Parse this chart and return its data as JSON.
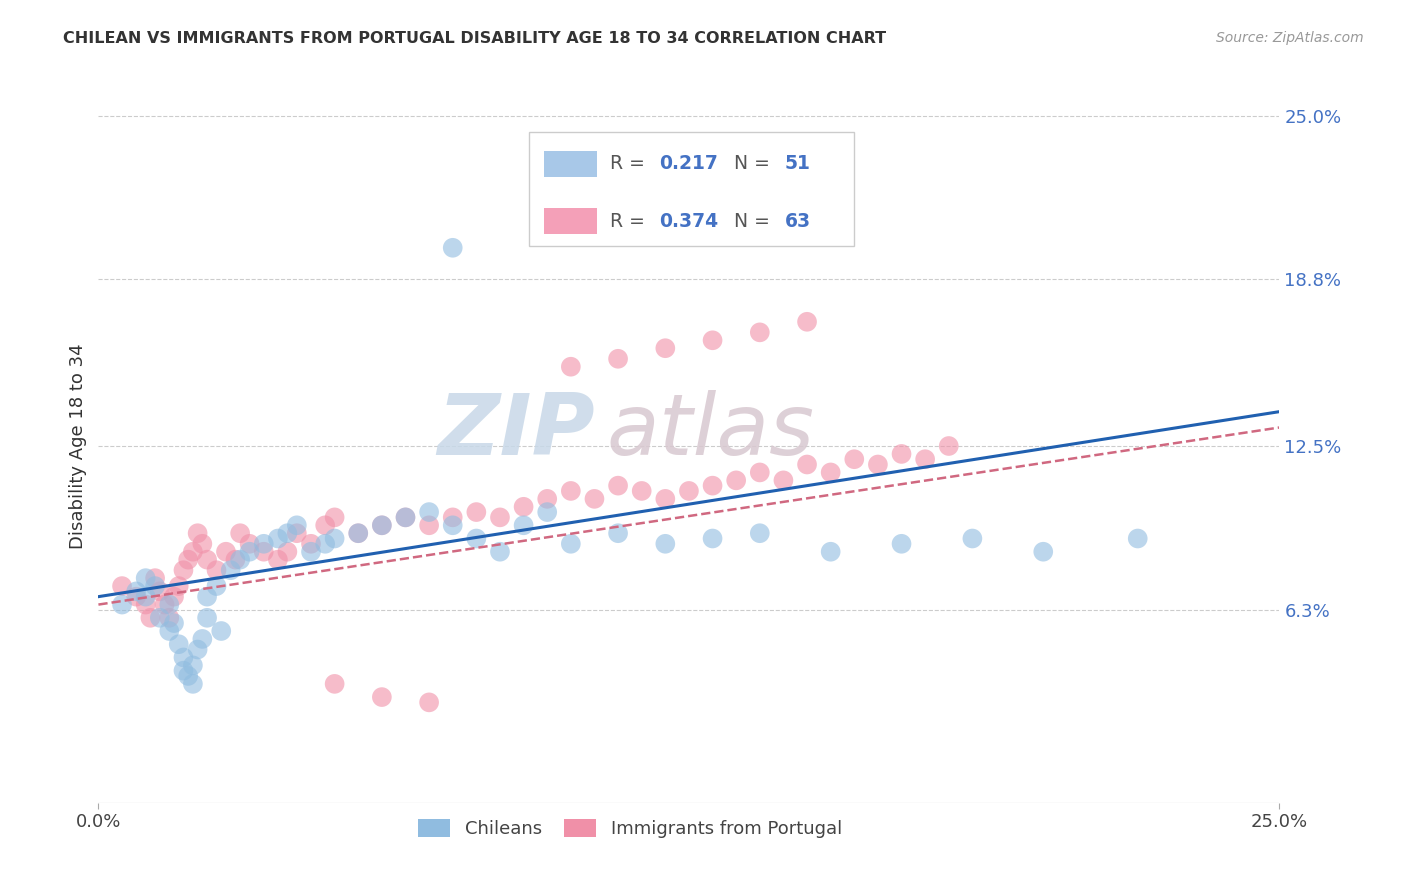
{
  "title": "CHILEAN VS IMMIGRANTS FROM PORTUGAL DISABILITY AGE 18 TO 34 CORRELATION CHART",
  "source": "Source: ZipAtlas.com",
  "ylabel": "Disability Age 18 to 34",
  "xlim": [
    0.0,
    0.25
  ],
  "ylim": [
    -0.01,
    0.26
  ],
  "ytick_labels": [
    "25.0%",
    "18.8%",
    "12.5%",
    "6.3%"
  ],
  "ytick_values": [
    0.25,
    0.188,
    0.125,
    0.063
  ],
  "legend_entry1": {
    "R": "0.217",
    "N": "51",
    "color": "#a8c8e8"
  },
  "legend_entry2": {
    "R": "0.374",
    "N": "63",
    "color": "#f4a0b8"
  },
  "blue_color": "#90bce0",
  "pink_color": "#f090a8",
  "blue_line_color": "#2060b0",
  "pink_line_color": "#d06880",
  "watermark_zip": "ZIP",
  "watermark_atlas": "atlas",
  "figsize": [
    14.06,
    8.92
  ],
  "dpi": 100,
  "blue_x": [
    0.005,
    0.008,
    0.01,
    0.01,
    0.012,
    0.013,
    0.015,
    0.015,
    0.016,
    0.017,
    0.018,
    0.018,
    0.019,
    0.02,
    0.02,
    0.021,
    0.022,
    0.023,
    0.023,
    0.025,
    0.026,
    0.028,
    0.03,
    0.032,
    0.035,
    0.038,
    0.04,
    0.042,
    0.045,
    0.048,
    0.05,
    0.055,
    0.06,
    0.065,
    0.07,
    0.075,
    0.08,
    0.085,
    0.09,
    0.095,
    0.1,
    0.11,
    0.12,
    0.13,
    0.14,
    0.155,
    0.17,
    0.185,
    0.2,
    0.22,
    0.075
  ],
  "blue_y": [
    0.065,
    0.07,
    0.068,
    0.075,
    0.072,
    0.06,
    0.065,
    0.055,
    0.058,
    0.05,
    0.045,
    0.04,
    0.038,
    0.035,
    0.042,
    0.048,
    0.052,
    0.06,
    0.068,
    0.072,
    0.055,
    0.078,
    0.082,
    0.085,
    0.088,
    0.09,
    0.092,
    0.095,
    0.085,
    0.088,
    0.09,
    0.092,
    0.095,
    0.098,
    0.1,
    0.095,
    0.09,
    0.085,
    0.095,
    0.1,
    0.088,
    0.092,
    0.088,
    0.09,
    0.092,
    0.085,
    0.088,
    0.09,
    0.085,
    0.09,
    0.2
  ],
  "pink_x": [
    0.005,
    0.008,
    0.01,
    0.011,
    0.012,
    0.013,
    0.014,
    0.015,
    0.016,
    0.017,
    0.018,
    0.019,
    0.02,
    0.021,
    0.022,
    0.023,
    0.025,
    0.027,
    0.029,
    0.03,
    0.032,
    0.035,
    0.038,
    0.04,
    0.042,
    0.045,
    0.048,
    0.05,
    0.055,
    0.06,
    0.065,
    0.07,
    0.075,
    0.08,
    0.085,
    0.09,
    0.095,
    0.1,
    0.105,
    0.11,
    0.115,
    0.12,
    0.125,
    0.13,
    0.135,
    0.14,
    0.145,
    0.15,
    0.155,
    0.16,
    0.165,
    0.17,
    0.175,
    0.18,
    0.1,
    0.11,
    0.12,
    0.13,
    0.14,
    0.15,
    0.05,
    0.06,
    0.07
  ],
  "pink_y": [
    0.072,
    0.068,
    0.065,
    0.06,
    0.075,
    0.07,
    0.065,
    0.06,
    0.068,
    0.072,
    0.078,
    0.082,
    0.085,
    0.092,
    0.088,
    0.082,
    0.078,
    0.085,
    0.082,
    0.092,
    0.088,
    0.085,
    0.082,
    0.085,
    0.092,
    0.088,
    0.095,
    0.098,
    0.092,
    0.095,
    0.098,
    0.095,
    0.098,
    0.1,
    0.098,
    0.102,
    0.105,
    0.108,
    0.105,
    0.11,
    0.108,
    0.105,
    0.108,
    0.11,
    0.112,
    0.115,
    0.112,
    0.118,
    0.115,
    0.12,
    0.118,
    0.122,
    0.12,
    0.125,
    0.155,
    0.158,
    0.162,
    0.165,
    0.168,
    0.172,
    0.035,
    0.03,
    0.028
  ],
  "blue_line_x": [
    0.0,
    0.25
  ],
  "blue_line_y": [
    0.068,
    0.138
  ],
  "pink_line_x": [
    0.0,
    0.25
  ],
  "pink_line_y": [
    0.065,
    0.132
  ]
}
